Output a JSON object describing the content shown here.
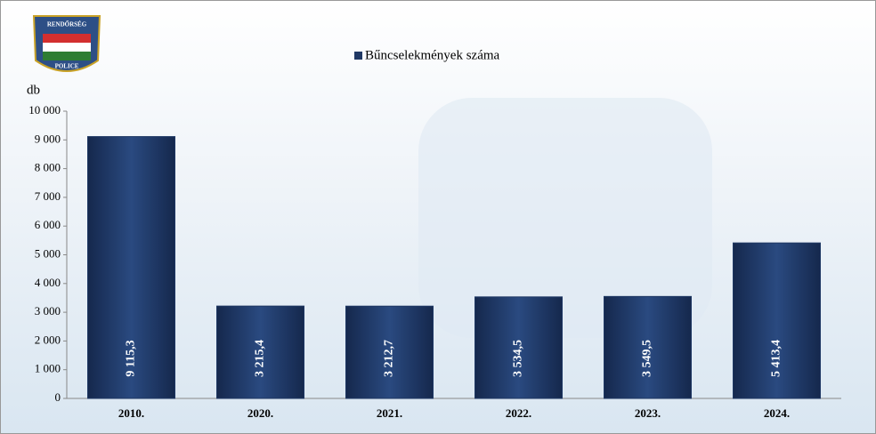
{
  "logo": {
    "top": "RENDŐRSÉG",
    "bottom": "POLICE"
  },
  "chart_data": {
    "type": "bar",
    "y_label": "db",
    "categories": [
      "2010.",
      "2020.",
      "2021.",
      "2022.",
      "2023.",
      "2024."
    ],
    "series": [
      {
        "name": "Bűncselekmények száma",
        "color": "#1f3864",
        "values": [
          9115.3,
          3215.4,
          3212.7,
          3534.5,
          3549.5,
          5413.4
        ],
        "value_labels": [
          "9 115,3",
          "3 215,4",
          "3 212,7",
          "3 534,5",
          "3 549,5",
          "5 413,4"
        ]
      }
    ],
    "ylim": [
      0,
      10000
    ],
    "yticks": [
      0,
      {
        "value": 1000,
        "label": "1 000"
      },
      {
        "value": 2000,
        "label": "2 000"
      },
      {
        "value": 3000,
        "label": "3 000"
      },
      {
        "value": 4000,
        "label": "4 000"
      },
      {
        "value": 5000,
        "label": "5 000"
      },
      {
        "value": 6000,
        "label": "6 000"
      },
      {
        "value": 7000,
        "label": "7 000"
      },
      {
        "value": 8000,
        "label": "8 000"
      },
      {
        "value": 9000,
        "label": "9 000"
      },
      {
        "value": 10000,
        "label": "10 000"
      }
    ]
  }
}
